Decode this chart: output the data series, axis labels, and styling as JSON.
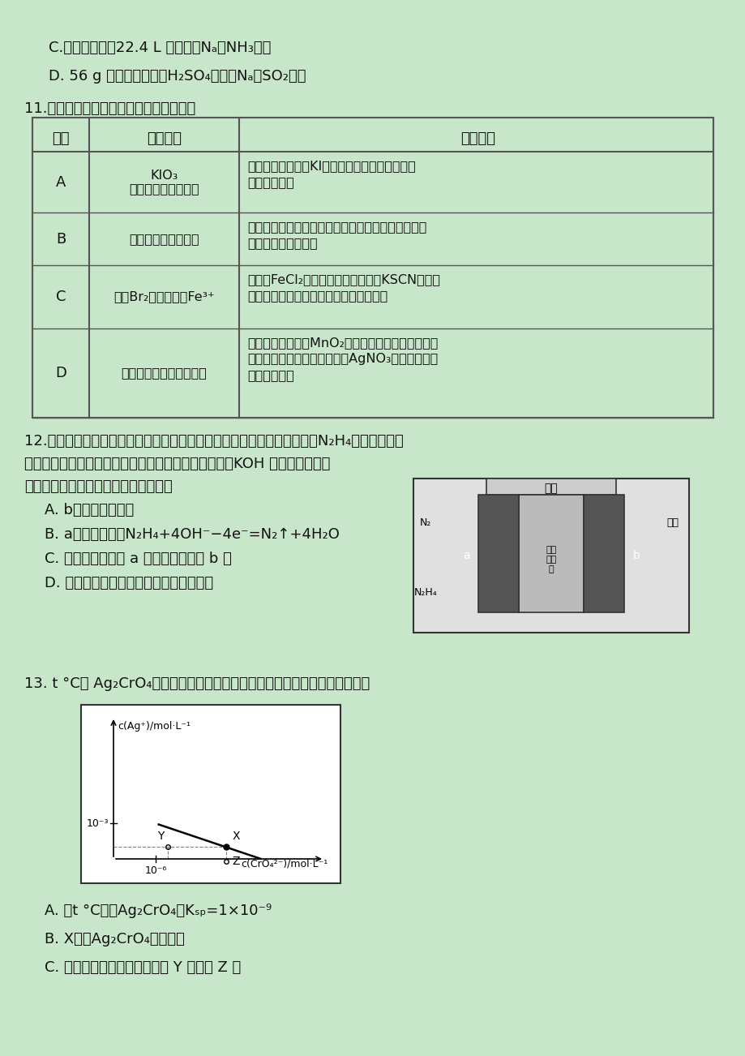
{
  "bg_color": "#c8e6c9",
  "text_color": "#222222",
  "title_color": "#111111",
  "page_bg": "#c8e6c9",
  "line_C": "C.标准状况下，22.4 L 氨水含有Nₐ个NH₃分子",
  "line_D": "D. 56 g 铁片投入足量浓H₂SO₄中生成Nₐ个SO₂分子",
  "q11": "11.下列实验方案，不能达到实验目的的是",
  "table_header": [
    "选项",
    "实验目的",
    "实验方案"
  ],
  "table_rows": [
    [
      "A",
      "检验食盐中是否添加\nKIO₃",
      "取食盐试样，溢于KI溶液，加入淠粉溶液，观察\n溶液是否变蓝"
    ],
    [
      "B",
      "验证硫酸是挥发性酸",
      "用两根玻璃棒分别蛮取浓硫酸和浓氨水，然后靠近，\n观察是否有白烟产生"
    ],
    [
      "C",
      "验证Br₂氧化性强于Fe³⁺",
      "取少许FeCl₂晶体溢于稀盐酸，加入KSCN观察溶\n液是否变红，滴入渴水后再观察是否变红"
    ],
    [
      "D",
      "检验氯酸钗中含有氯元素",
      "取少量氯酸钗加入MnO₂充分加热，残留物溢于水，\n取上层清液，滴入硫酸酸化的AgNO₃溶液，观察是\n否有白色沉淠"
    ]
  ],
  "q12_text1": "12.液体燃料电池相比于气体燃料电池具有体积小等优点。一种以液态肼（N₂H₄）为燃料的电",
  "q12_text2": "池装置如图所示，该电池用空气中的氧气作为氧化剂，KOH 溶液作为电解质",
  "q12_text3": "溶液。下列关于该电池的叙述正确的是",
  "q12_A": "A. b极发生氧化反应",
  "q12_B": "B. a极的反应式：N₂H₄+4OH⁻−4e⁻=N₂↑+4H₂O",
  "q12_C": "C. 放电时，电流从 a 极经过负载流向 b 极",
  "q12_D": "D. 其中的离子交换膜需选用阳离子交换膜",
  "q13_text": "13. t °C时 Ag₂CrO₄在水中的沉淠溶解平衡曲线如图所示。下列说法正确的是",
  "q13_A": "A. 在t °C时，Ag₂CrO₄的Kₛₚ=1×10⁻⁹",
  "q13_B": "B. X点有Ag₂CrO₄沉淠生成",
  "q13_C": "C. 通过加热蔓发可以使溶液由 Y 点变到 Z 点"
}
